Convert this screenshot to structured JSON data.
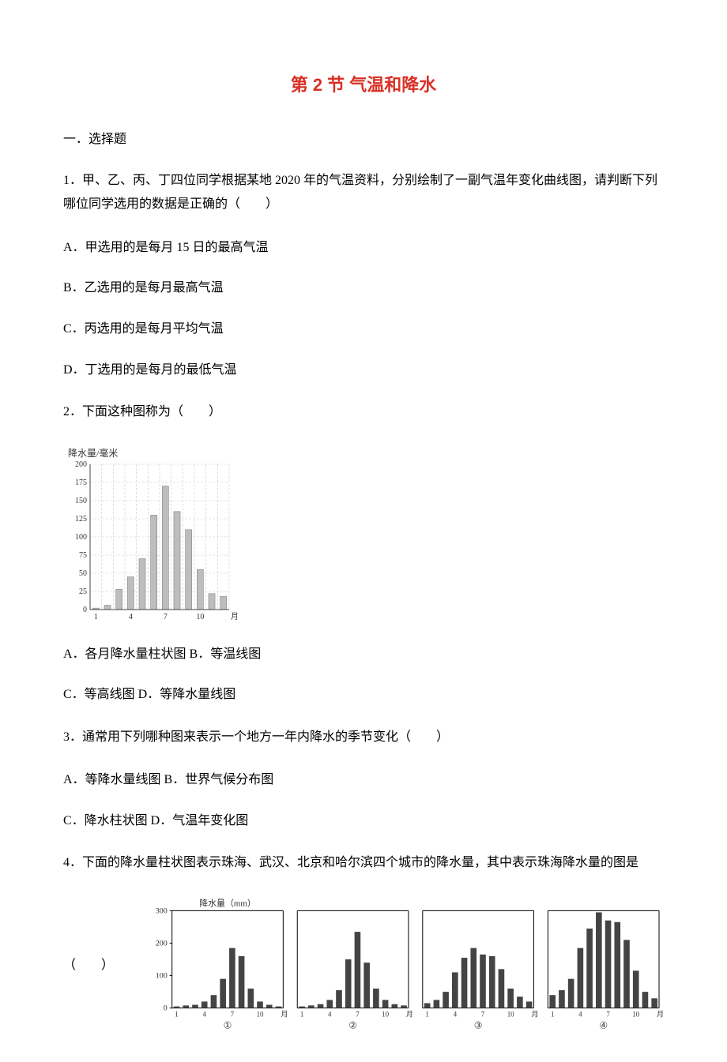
{
  "title": "第 2 节 气温和降水",
  "section_heading": "一．选择题",
  "q1": {
    "text": "1．甲、乙、丙、丁四位同学根据某地 2020 年的气温资料，分别绘制了一副气温年变化曲线图，请判断下列哪位同学选用的数据是正确的（　　）",
    "A": "A．甲选用的是每月 15 日的最高气温",
    "B": "B．乙选用的是每月最高气温",
    "C": "C．丙选用的是每月平均气温",
    "D": "D．丁选用的是每月的最低气温"
  },
  "q2": {
    "text": "2．下面这种图称为（　　）",
    "chart": {
      "type": "bar",
      "y_axis_label": "降水量/毫米",
      "x_axis_label": "月份",
      "y_ticks": [
        0,
        25,
        50,
        75,
        100,
        125,
        150,
        175,
        200
      ],
      "x_ticks": [
        1,
        4,
        7,
        10
      ],
      "values": [
        2,
        6,
        28,
        45,
        70,
        130,
        170,
        135,
        110,
        55,
        22,
        18
      ],
      "bar_color": "#bdbdbd",
      "bar_border": "#888888",
      "grid_color": "#cccccc",
      "dash_pattern": "3,2",
      "background_color": "#ffffff",
      "axis_color": "#444444",
      "label_fontsize": 10,
      "title_fontsize": 12
    },
    "AB": "A．各月降水量柱状图 B．等温线图",
    "CD": "C．等高线图 D．等降水量线图"
  },
  "q3": {
    "text": "3．通常用下列哪种图来表示一个地方一年内降水的季节变化（　　）",
    "AB": "A．等降水量线图 B．世界气候分布图",
    "CD": "C．降水柱状图   D．气温年变化图"
  },
  "q4": {
    "text": "4．下面的降水量柱状图表示珠海、武汉、北京和哈尔滨四个城市的降水量，其中表示珠海降水量的图是",
    "paren": "（　　）",
    "y_axis_label": "降水量（mm）",
    "x_label": "月",
    "y_ticks": [
      0,
      100,
      200,
      300
    ],
    "x_ticks": [
      1,
      4,
      7,
      10
    ],
    "panels": [
      {
        "label": "①",
        "values": [
          5,
          8,
          10,
          20,
          40,
          90,
          185,
          160,
          60,
          20,
          10,
          5
        ]
      },
      {
        "label": "②",
        "values": [
          5,
          8,
          12,
          25,
          55,
          150,
          235,
          140,
          60,
          25,
          12,
          8
        ]
      },
      {
        "label": "③",
        "values": [
          15,
          25,
          50,
          110,
          155,
          185,
          165,
          160,
          120,
          60,
          35,
          20
        ]
      },
      {
        "label": "④",
        "values": [
          40,
          55,
          90,
          185,
          245,
          295,
          270,
          265,
          210,
          115,
          50,
          30
        ]
      }
    ],
    "bar_color": "#444444",
    "axis_color": "#000000",
    "label_fontsize": 10
  }
}
